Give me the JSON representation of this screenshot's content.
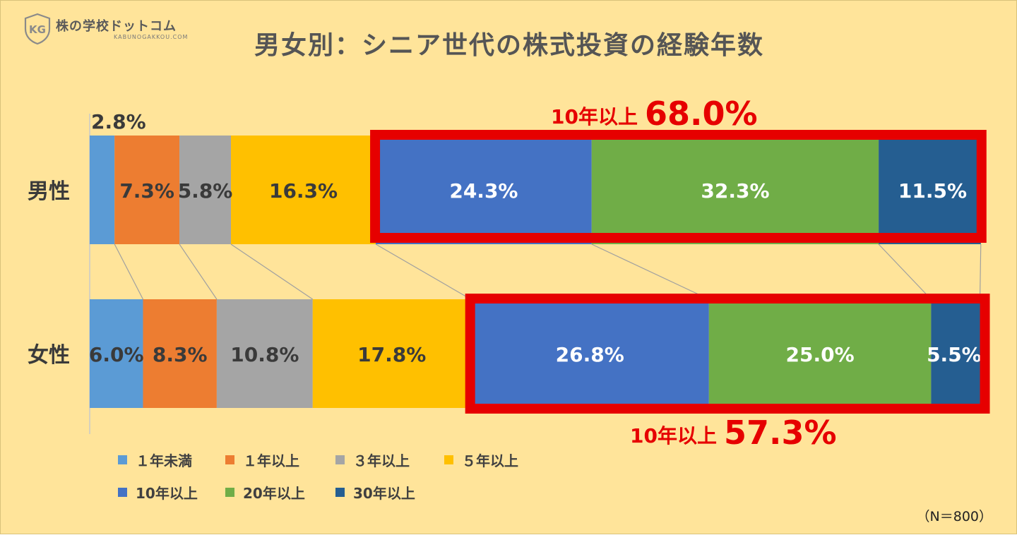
{
  "header": {
    "logo_text": "株の学校ドットコム",
    "logo_sub": "KABUNOGAKKOU.COM",
    "logo_mark": "KG"
  },
  "chart_data": {
    "type": "bar",
    "orientation": "horizontal",
    "stacked": true,
    "percent_stacked": true,
    "title": "男女別：シニア世代の株式投資の経験年数",
    "categories": [
      "男性",
      "女性"
    ],
    "xlim": [
      0,
      100
    ],
    "grid": false,
    "legend_position": "bottom",
    "series": [
      {
        "name": "１年未満",
        "color": "#5b9bd5",
        "values": [
          2.8,
          6.0
        ]
      },
      {
        "name": "１年以上",
        "color": "#ed7d31",
        "values": [
          7.3,
          8.3
        ]
      },
      {
        "name": "３年以上",
        "color": "#a5a5a5",
        "values": [
          5.8,
          10.8
        ]
      },
      {
        "name": "５年以上",
        "color": "#ffc000",
        "values": [
          16.3,
          17.8
        ]
      },
      {
        "name": "10年以上",
        "color": "#4472c4",
        "values": [
          24.3,
          26.8
        ]
      },
      {
        "name": "20年以上",
        "color": "#70ad47",
        "values": [
          32.3,
          25.0
        ]
      },
      {
        "name": "30年以上",
        "color": "#255e91",
        "values": [
          11.5,
          5.5
        ]
      }
    ],
    "data_labels": [
      [
        "2.8%",
        "7.3%",
        "5.8%",
        "16.3%",
        "24.3%",
        "32.3%",
        "11.5%"
      ],
      [
        "6.0%",
        "8.3%",
        "10.8%",
        "17.8%",
        "26.8%",
        "25.0%",
        "5.5%"
      ]
    ],
    "annotations": [
      {
        "label": "10年以上",
        "value": "68.0%",
        "category": "男性",
        "highlight_series_from": 4,
        "color": "#e60000"
      },
      {
        "label": "10年以上",
        "value": "57.3%",
        "category": "女性",
        "highlight_series_from": 4,
        "color": "#e60000"
      }
    ],
    "note": "（N＝800）"
  }
}
